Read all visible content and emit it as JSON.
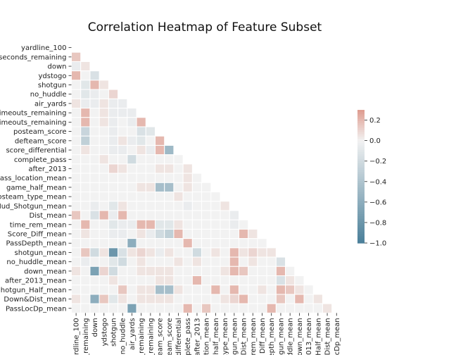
{
  "chart_data": {
    "type": "heatmap",
    "title": "Correlation Heatmap of Feature Subset",
    "xlabel": "",
    "ylabel": "",
    "mask": "upper-triangle",
    "grid": false,
    "colormap": {
      "low": "#4a7f99",
      "mid": "#f2f2f2",
      "high": "#de9b8e"
    },
    "colorbar": {
      "range": [
        -1.0,
        0.3
      ],
      "ticks": [
        0.2,
        0.0,
        -0.2,
        -0.4,
        -0.6,
        -0.8,
        -1.0
      ],
      "tick_labels": [
        "0.2",
        "0.0",
        "−0.2",
        "−0.4",
        "−0.6",
        "−0.8",
        "−1.0"
      ]
    },
    "y_tick_labels": [
      "yardline_100",
      "seconds_remaining",
      "down",
      "ydstogo",
      "shotgun",
      "no_huddle",
      "air_yards",
      "imeouts_remaining",
      "imeouts_remaining",
      "posteam_score",
      "defteam_score",
      "score_differential",
      "complete_pass",
      "after_2013",
      "ass_location_mean",
      "game_half_mean",
      "osteam_type_mean",
      "Hud_Shotgun_mean",
      "Dist_mean",
      "time_rem_mean",
      "Score_Diff_mean",
      "PassDepth_mean",
      "shotgun_mean",
      "no_huddle_mean",
      "down_mean",
      "after_2013_mean",
      "hotgun_Half_mean",
      "Down&Dist_mean",
      "PassLocDp_mean"
    ],
    "x_tick_labels": [
      "rdline_100",
      "_remaining",
      "down",
      "ydstogo",
      "shotgun",
      "no_huddle",
      "air_yards",
      "_remaining",
      "_remaining",
      "eam_score",
      "eam_score",
      "differential",
      "plete_pass",
      "after_2013",
      "ation_mean",
      "half_mean",
      "type_mean",
      "gun_mean",
      "Dist_mean",
      "rem_mean",
      "Diff_mean",
      "epth_mean",
      "gun_mean",
      "ddle_mean",
      "own_mean",
      "013_mean",
      "Half_mean",
      "Dist_mean",
      "ocDp_mean"
    ],
    "values": [
      [
        0
      ],
      [
        0.15,
        0
      ],
      [
        -0.05,
        0.05,
        0
      ],
      [
        0.2,
        0.0,
        -0.15,
        0
      ],
      [
        0.0,
        -0.1,
        0.2,
        0.05,
        0
      ],
      [
        0.0,
        -0.1,
        -0.05,
        0.0,
        0.1,
        0
      ],
      [
        0.05,
        -0.05,
        -0.05,
        0.05,
        -0.05,
        -0.05,
        0
      ],
      [
        0.0,
        0.2,
        0.0,
        0.05,
        -0.05,
        -0.05,
        -0.05,
        0
      ],
      [
        0.0,
        0.2,
        0.0,
        0.05,
        -0.05,
        0.0,
        -0.05,
        0.2,
        0
      ],
      [
        0.0,
        -0.25,
        0.0,
        0.0,
        -0.05,
        0.0,
        0.0,
        -0.15,
        -0.1,
        0
      ],
      [
        0.0,
        -0.3,
        0.0,
        0.0,
        -0.05,
        0.05,
        -0.05,
        -0.1,
        0.0,
        0.2,
        0
      ],
      [
        0.0,
        0.05,
        0.0,
        0.0,
        -0.05,
        -0.05,
        0.0,
        0.05,
        -0.05,
        0.2,
        -0.5,
        0
      ],
      [
        0.0,
        0.0,
        0.0,
        0.05,
        0.0,
        0.0,
        -0.2,
        0.0,
        0.0,
        0.0,
        0.0,
        0.0,
        0
      ],
      [
        0.0,
        0.0,
        0.0,
        0.0,
        0.1,
        0.05,
        0.0,
        0.0,
        0.0,
        0.05,
        0.05,
        0.0,
        0.05,
        0
      ],
      [
        0.0,
        0.0,
        0.0,
        0.0,
        0.0,
        0.0,
        0.0,
        0.0,
        0.0,
        0.0,
        0.0,
        0.0,
        0.05,
        0.0,
        0
      ],
      [
        0.0,
        0.0,
        0.0,
        0.0,
        0.0,
        0.0,
        0.0,
        0.05,
        0.05,
        -0.45,
        -0.45,
        0.0,
        0.05,
        0.0,
        0.0,
        0
      ],
      [
        0.0,
        0.0,
        0.0,
        0.0,
        0.0,
        0.0,
        0.0,
        0.0,
        0.0,
        0.0,
        0.0,
        0.05,
        0.0,
        0.0,
        0.0,
        0.0,
        0
      ],
      [
        0.0,
        0.0,
        -0.05,
        0.0,
        -0.1,
        0.05,
        0.0,
        0.0,
        0.0,
        0.0,
        0.0,
        0.0,
        -0.05,
        0.0,
        0.0,
        0.0,
        0.05,
        0
      ],
      [
        0.15,
        0.0,
        -0.15,
        0.2,
        -0.05,
        0.2,
        0.0,
        0.0,
        0.0,
        0.0,
        0.0,
        0.0,
        0.0,
        0.0,
        0.0,
        0.0,
        0.0,
        -0.05,
        0
      ],
      [
        0.0,
        0.2,
        0.0,
        0.0,
        -0.1,
        -0.05,
        -0.05,
        0.2,
        0.2,
        -0.1,
        -0.1,
        0.05,
        0.0,
        0.0,
        0.0,
        0.0,
        0.0,
        -0.05,
        0.0,
        0
      ],
      [
        0.0,
        0.05,
        0.0,
        0.0,
        -0.05,
        -0.05,
        0.0,
        0.05,
        -0.05,
        -0.2,
        -0.3,
        0.2,
        0.0,
        0.0,
        0.0,
        0.0,
        0.0,
        0.0,
        0.2,
        0.05,
        0
      ],
      [
        0.0,
        0.0,
        0.0,
        0.0,
        0.0,
        0.0,
        -0.6,
        0.0,
        0.0,
        0.0,
        0.0,
        0.0,
        0.2,
        0.0,
        0.0,
        0.0,
        0.0,
        0.0,
        0.0,
        0.0,
        0.0,
        0
      ],
      [
        0.0,
        0.15,
        -0.2,
        0.05,
        -0.8,
        -0.15,
        0.05,
        0.1,
        0.05,
        -0.05,
        0.05,
        0.0,
        0.0,
        -0.2,
        0.0,
        0.05,
        0.0,
        0.2,
        0.05,
        0.1,
        0.05,
        0.05,
        0
      ],
      [
        0.0,
        -0.05,
        0.0,
        0.0,
        -0.1,
        -0.2,
        0.0,
        0.05,
        0.0,
        0.0,
        0.0,
        0.05,
        0.0,
        0.05,
        0.0,
        0.0,
        0.0,
        0.2,
        0.0,
        0.05,
        0.0,
        0.0,
        -0.15,
        0
      ],
      [
        0.05,
        0.0,
        -0.7,
        0.1,
        -0.2,
        0.0,
        0.0,
        0.05,
        0.05,
        0.05,
        0.05,
        0.0,
        0.0,
        0.0,
        0.0,
        0.0,
        0.05,
        0.2,
        0.15,
        0.0,
        0.0,
        0.0,
        0.2,
        0.0,
        0
      ],
      [
        0.0,
        0.0,
        0.0,
        0.0,
        0.05,
        0.0,
        0.0,
        0.0,
        0.0,
        0.05,
        0.05,
        0.0,
        0.0,
        0.2,
        0.0,
        0.0,
        0.0,
        0.0,
        0.0,
        0.0,
        0.0,
        0.0,
        -0.15,
        0.05,
        0.0,
        0
      ],
      [
        0.0,
        0.0,
        0.0,
        0.0,
        0.0,
        0.15,
        0.0,
        0.05,
        0.05,
        -0.45,
        -0.45,
        0.05,
        0.0,
        0.0,
        0.0,
        0.2,
        0.0,
        0.2,
        0.0,
        0.0,
        0.05,
        0.0,
        0.2,
        0.15,
        0.05,
        0.0,
        0
      ],
      [
        0.05,
        0.0,
        -0.6,
        0.15,
        -0.1,
        0.05,
        0.0,
        0.05,
        0.05,
        0.05,
        0.05,
        0.0,
        0.0,
        0.0,
        0.0,
        0.0,
        0.05,
        0.1,
        0.2,
        0.0,
        0.0,
        0.0,
        0.15,
        0.0,
        0.2,
        0.0,
        0.05,
        0
      ],
      [
        0.0,
        0.0,
        0.0,
        0.0,
        0.0,
        0.0,
        -0.7,
        0.0,
        0.0,
        0.0,
        0.0,
        0.0,
        0.2,
        0.0,
        0.15,
        0.0,
        0.0,
        0.0,
        0.0,
        0.0,
        0.0,
        0.2,
        0.0,
        0.0,
        0.0,
        0.0,
        0.0,
        0.05,
        0
      ]
    ]
  }
}
